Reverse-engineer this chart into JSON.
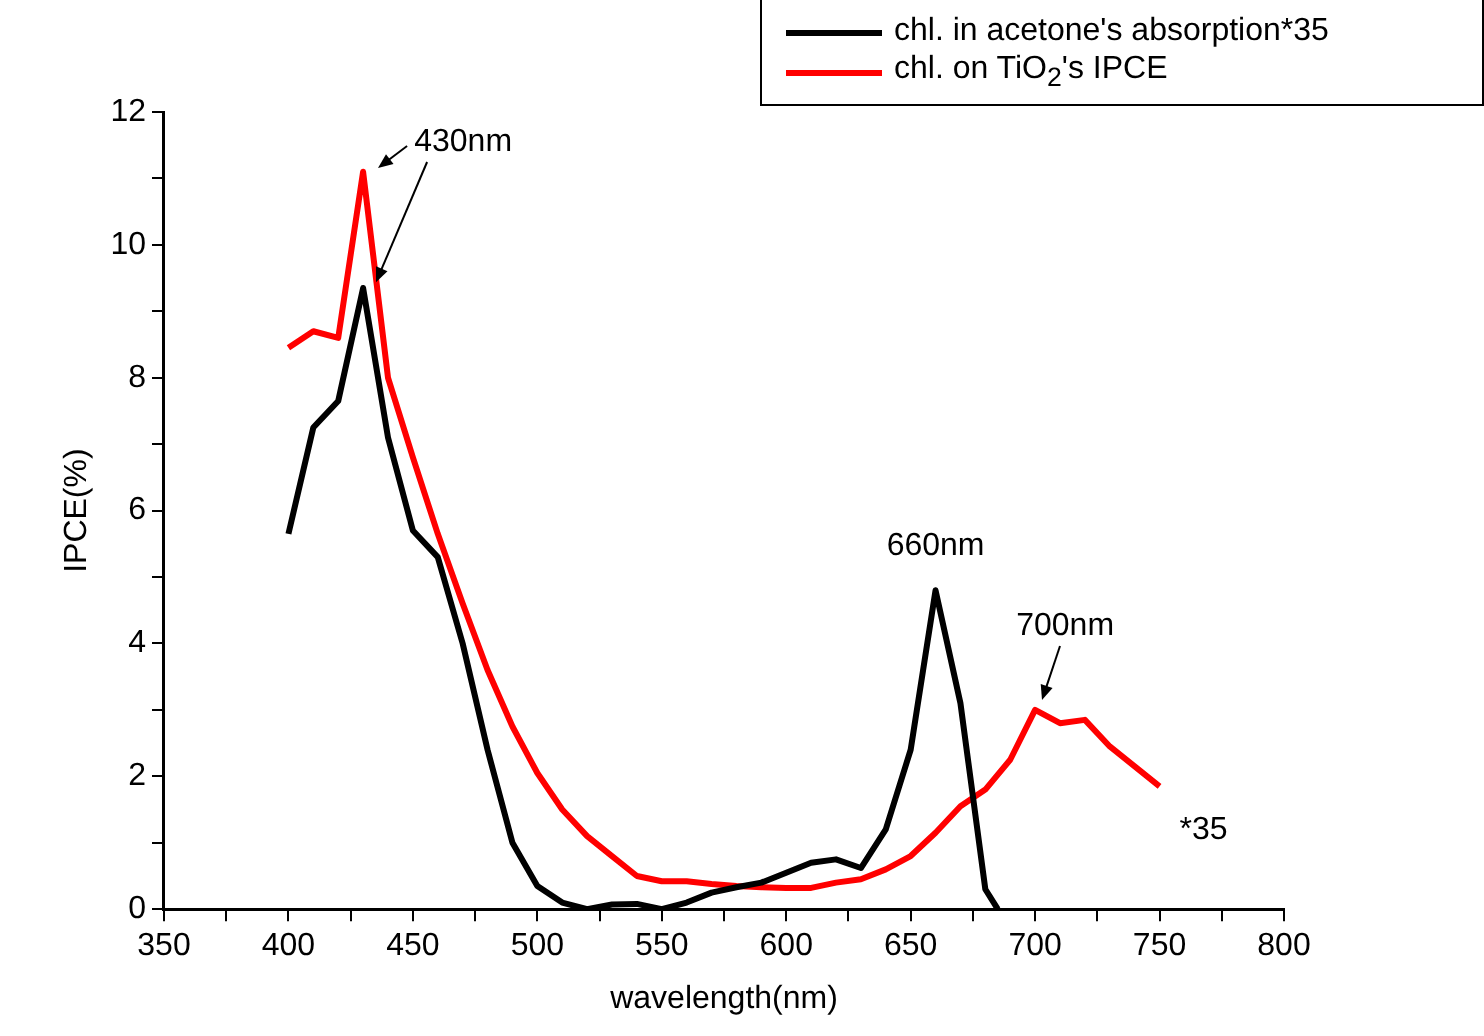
{
  "chart_data": {
    "type": "line",
    "xlabel": "wavelength(nm)",
    "ylabel": "IPCE(%)",
    "xlim": [
      350,
      800
    ],
    "xticks": [
      350,
      {
        "value": 375,
        "label": null
      },
      400,
      {
        "value": 425,
        "label": null
      },
      450,
      {
        "value": 475,
        "label": null
      },
      500,
      {
        "value": 525,
        "label": null
      },
      550,
      {
        "value": 575,
        "label": null
      },
      600,
      {
        "value": 625,
        "label": null
      },
      650,
      {
        "value": 675,
        "label": null
      },
      700,
      {
        "value": 725,
        "label": null
      },
      750,
      {
        "value": 775,
        "label": null
      },
      800
    ],
    "ylim": [
      0,
      12
    ],
    "yticks": [
      0,
      {
        "value": 1,
        "label": null
      },
      2,
      {
        "value": 3,
        "label": null
      },
      4,
      {
        "value": 5,
        "label": null
      },
      6,
      {
        "value": 7,
        "label": null
      },
      8,
      {
        "value": 9,
        "label": null
      },
      10,
      {
        "value": 11,
        "label": null
      },
      12
    ],
    "grid": false,
    "legend": "top right",
    "marker": "none",
    "line_style": "solid",
    "series": [
      {
        "name": "chl. in acetone's absorption*35",
        "color": "#000000",
        "x": [
          400,
          410,
          420,
          430,
          440,
          450,
          460,
          470,
          480,
          490,
          500,
          510,
          520,
          530,
          540,
          550,
          560,
          570,
          580,
          590,
          600,
          610,
          620,
          630,
          640,
          650,
          660,
          670,
          680,
          685
        ],
        "values": [
          5.65,
          7.25,
          7.65,
          9.35,
          7.1,
          5.7,
          5.3,
          4.0,
          2.4,
          1.0,
          0.35,
          0.1,
          0.0,
          0.07,
          0.08,
          0.0,
          0.1,
          0.25,
          0.33,
          0.4,
          0.55,
          0.7,
          0.75,
          0.62,
          1.2,
          2.4,
          4.8,
          3.1,
          0.3,
          0.0
        ]
      },
      {
        "name": "chl. on TiO$_{2}$'s  IPCE",
        "color": "#ff0000",
        "x": [
          400,
          410,
          420,
          430,
          440,
          450,
          460,
          470,
          480,
          490,
          500,
          510,
          520,
          530,
          540,
          550,
          560,
          570,
          580,
          590,
          600,
          610,
          620,
          630,
          640,
          650,
          660,
          670,
          680,
          690,
          700,
          710,
          720,
          730,
          740,
          750
        ],
        "values": [
          8.45,
          8.7,
          8.6,
          11.1,
          8.0,
          6.8,
          5.65,
          4.6,
          3.6,
          2.75,
          2.05,
          1.5,
          1.1,
          0.8,
          0.5,
          0.42,
          0.42,
          0.38,
          0.35,
          0.33,
          0.32,
          0.32,
          0.4,
          0.45,
          0.6,
          0.8,
          1.15,
          1.55,
          1.8,
          2.25,
          3.0,
          2.8,
          2.85,
          2.45,
          2.15,
          1.85
        ]
      }
    ],
    "annotations": [
      {
        "text": "430nm",
        "x": 430,
        "y": 11.1
      },
      {
        "text": "660nm",
        "x": 660,
        "y": 4.8
      },
      {
        "text": "700nm",
        "x": 700,
        "y": 3.0
      },
      {
        "text": "*35",
        "x": 750,
        "y": 1.85
      }
    ]
  }
}
